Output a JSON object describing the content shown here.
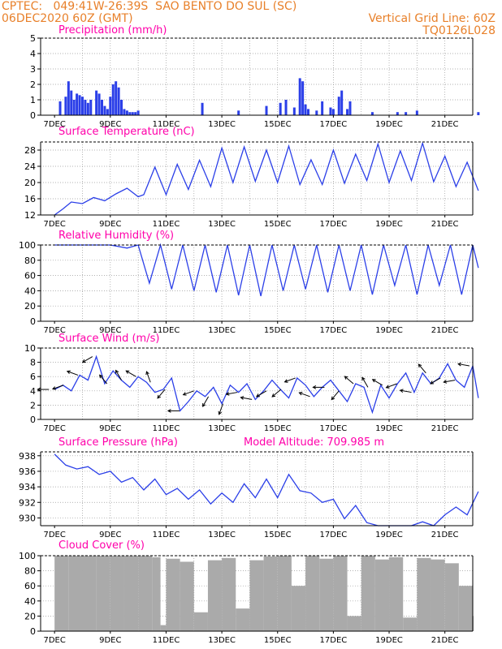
{
  "header": {
    "left_line1": "CPTEC:   049:41W-26:39S  SAO BENTO DO SUL (SC)",
    "left_line2": "06DEC2020 60Z (GMT)",
    "right_line1": "Vertical Grid Line: 60Z",
    "right_line2": "TQ0126L028"
  },
  "colors": {
    "header": "#e8802a",
    "title": "#ff00aa",
    "series": "#2b3fe8",
    "cloud": "#aaaaaa",
    "arrow": "#000000"
  },
  "x_ticks": [
    "7DEC",
    "9DEC",
    "11DEC",
    "13DEC",
    "15DEC",
    "17DEC",
    "19DEC",
    "21DEC"
  ],
  "chart_data": [
    {
      "type": "bar",
      "title": "Precipitation (mm/h)",
      "ylim": [
        0,
        5
      ],
      "yticks": [
        0,
        1,
        2,
        3,
        4,
        5
      ],
      "x_day_offsets": [
        0.2,
        0.4,
        0.5,
        0.6,
        0.7,
        0.8,
        0.9,
        1.0,
        1.1,
        1.2,
        1.3,
        1.5,
        1.6,
        1.7,
        1.8,
        1.9,
        2.0,
        2.1,
        2.2,
        2.3,
        2.4,
        2.5,
        2.6,
        2.7,
        2.8,
        2.9,
        3.0,
        5.3,
        6.6,
        7.6,
        8.1,
        8.3,
        8.6,
        8.8,
        8.9,
        9.0,
        9.1,
        9.4,
        9.6,
        9.9,
        10.0,
        10.2,
        10.3,
        10.5,
        10.6,
        11.4,
        12.3,
        12.6,
        13.0,
        15.2
      ],
      "values": [
        0.9,
        1.2,
        2.2,
        1.6,
        1.0,
        1.4,
        1.3,
        1.2,
        1.0,
        0.8,
        1.0,
        1.6,
        1.4,
        1.0,
        0.6,
        0.4,
        1.2,
        2.0,
        2.2,
        1.8,
        1.0,
        0.4,
        0.3,
        0.2,
        0.2,
        0.2,
        0.3,
        0.8,
        0.3,
        0.6,
        0.8,
        1.0,
        0.5,
        2.4,
        2.2,
        0.7,
        0.4,
        0.3,
        0.9,
        0.5,
        0.4,
        1.2,
        1.6,
        0.4,
        0.9,
        0.2,
        0.2,
        0.2,
        0.3,
        0.2
      ]
    },
    {
      "type": "line",
      "title": "Surface Temperature (nC)",
      "ylim": [
        12,
        30
      ],
      "yticks": [
        12,
        16,
        20,
        24,
        28
      ],
      "x_day_offsets": [
        0,
        0.3,
        0.6,
        1.0,
        1.4,
        1.8,
        2.2,
        2.6,
        3.0,
        3.2,
        3.6,
        4.0,
        4.4,
        4.8,
        5.2,
        5.6,
        6.0,
        6.4,
        6.8,
        7.2,
        7.6,
        8.0,
        8.4,
        8.8,
        9.2,
        9.6,
        10.0,
        10.4,
        10.8,
        11.2,
        11.6,
        12.0,
        12.4,
        12.8,
        13.2,
        13.6,
        14.0,
        14.4,
        14.8,
        15.2
      ],
      "values": [
        12,
        13.5,
        15.2,
        14.8,
        16.3,
        15.5,
        17.2,
        18.6,
        16.5,
        17.0,
        23.8,
        17.0,
        24.5,
        18.3,
        25.5,
        19.0,
        28.5,
        20.0,
        28.8,
        20.3,
        28.0,
        20.0,
        29.0,
        19.5,
        25.6,
        19.5,
        28.0,
        19.8,
        27.0,
        20.5,
        29.5,
        20.0,
        27.8,
        20.5,
        29.7,
        20.2,
        26.5,
        19.0,
        25.0,
        18.0
      ]
    },
    {
      "type": "line",
      "title": "Relative Humidity (%)",
      "ylim": [
        0,
        100
      ],
      "yticks": [
        0,
        20,
        40,
        60,
        80,
        100
      ],
      "x_day_offsets": [
        0,
        0.4,
        1.0,
        2.0,
        2.6,
        3.0,
        3.4,
        3.8,
        4.2,
        4.6,
        5.0,
        5.4,
        5.8,
        6.2,
        6.6,
        7.0,
        7.4,
        7.8,
        8.2,
        8.6,
        9.0,
        9.4,
        9.8,
        10.2,
        10.6,
        11.0,
        11.4,
        11.8,
        12.2,
        12.6,
        13.0,
        13.4,
        13.8,
        14.2,
        14.6,
        15.0,
        15.2
      ],
      "values": [
        100,
        100,
        100,
        100,
        96,
        100,
        50,
        100,
        42,
        100,
        40,
        100,
        38,
        100,
        34,
        100,
        33,
        100,
        40,
        100,
        42,
        100,
        38,
        100,
        40,
        100,
        35,
        100,
        47,
        100,
        35,
        100,
        47,
        100,
        35,
        100,
        70
      ]
    },
    {
      "type": "line",
      "title": "Surface Wind (m/s)",
      "ylim": [
        0,
        10
      ],
      "yticks": [
        0,
        2,
        4,
        6,
        8,
        10
      ],
      "x_day_offsets": [
        0,
        0.3,
        0.6,
        0.9,
        1.2,
        1.5,
        1.8,
        2.1,
        2.4,
        2.7,
        3.0,
        3.3,
        3.6,
        3.9,
        4.2,
        4.5,
        4.8,
        5.1,
        5.4,
        5.7,
        6.0,
        6.3,
        6.6,
        6.9,
        7.2,
        7.5,
        7.8,
        8.1,
        8.4,
        8.7,
        9.0,
        9.3,
        9.6,
        9.9,
        10.2,
        10.5,
        10.8,
        11.1,
        11.4,
        11.7,
        12.0,
        12.3,
        12.6,
        12.9,
        13.2,
        13.5,
        13.8,
        14.1,
        14.4,
        14.7,
        15.0,
        15.2
      ],
      "values": [
        4.2,
        4.8,
        4.0,
        6.2,
        5.5,
        8.8,
        5.0,
        6.8,
        5.5,
        4.5,
        6.0,
        5.2,
        3.8,
        4.2,
        5.8,
        1.2,
        2.5,
        4.0,
        3.2,
        4.5,
        2.2,
        4.8,
        3.8,
        5.0,
        2.8,
        4.0,
        5.5,
        4.2,
        3.0,
        5.8,
        4.8,
        3.2,
        4.5,
        5.5,
        4.0,
        2.5,
        5.0,
        4.5,
        1.0,
        4.8,
        3.0,
        5.0,
        6.5,
        3.8,
        6.5,
        5.0,
        5.8,
        7.8,
        5.5,
        4.5,
        7.5,
        3.0
      ]
    },
    {
      "type": "line",
      "title": "Surface Pressure (hPa)",
      "annotation": "Model Altitude: 709.985 m",
      "ylim": [
        929,
        938.5
      ],
      "yticks": [
        930,
        932,
        934,
        936,
        938
      ],
      "x_day_offsets": [
        0,
        0.4,
        0.8,
        1.2,
        1.6,
        2.0,
        2.4,
        2.8,
        3.2,
        3.6,
        4.0,
        4.4,
        4.8,
        5.2,
        5.6,
        6.0,
        6.4,
        6.8,
        7.2,
        7.6,
        8.0,
        8.4,
        8.8,
        9.2,
        9.6,
        10.0,
        10.4,
        10.8,
        11.2,
        11.6,
        12.0,
        12.4,
        12.8,
        13.2,
        13.6,
        14.0,
        14.4,
        14.8,
        15.2
      ],
      "values": [
        938.2,
        936.8,
        936.3,
        936.6,
        935.6,
        936.0,
        934.6,
        935.2,
        933.6,
        935.0,
        933.0,
        933.8,
        932.4,
        933.6,
        931.8,
        933.2,
        932.0,
        934.4,
        932.6,
        935.0,
        932.6,
        935.6,
        933.5,
        933.2,
        932.0,
        932.4,
        929.9,
        931.6,
        929.4,
        928.6,
        928.5,
        928.5,
        928.2,
        929.5,
        929.0,
        930.4,
        931.4,
        930.4,
        933.4
      ]
    },
    {
      "type": "bar",
      "title": "Cloud Cover (%)",
      "ylim": [
        0,
        100
      ],
      "yticks": [
        0,
        20,
        40,
        60,
        80,
        100
      ],
      "x_day_offsets": [
        0,
        0.5,
        1.0,
        1.5,
        2.0,
        2.5,
        3.0,
        3.5,
        3.8,
        4.0,
        4.5,
        5.0,
        5.5,
        6.0,
        6.5,
        7.0,
        7.5,
        8.0,
        8.5,
        9.0,
        9.5,
        10.0,
        10.5,
        11.0,
        11.5,
        12.0,
        12.5,
        13.0,
        13.5,
        14.0,
        14.5,
        15.0
      ],
      "values": [
        100,
        100,
        100,
        100,
        100,
        100,
        100,
        98,
        8,
        96,
        92,
        25,
        94,
        97,
        30,
        94,
        99,
        100,
        60,
        100,
        96,
        100,
        20,
        100,
        95,
        98,
        18,
        97,
        95,
        90,
        60,
        20
      ]
    }
  ]
}
